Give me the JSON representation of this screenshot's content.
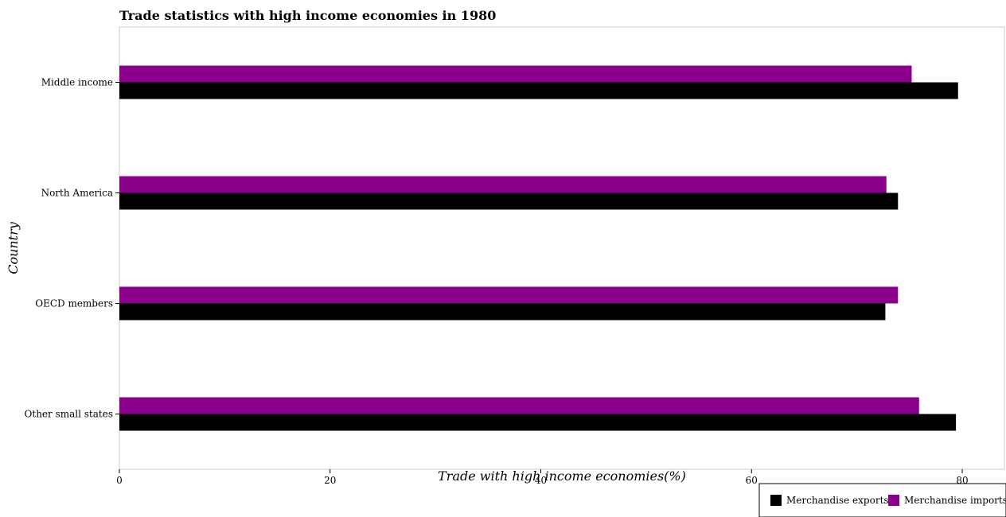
{
  "chart_data": {
    "type": "bar",
    "orientation": "horizontal",
    "title": "Trade statistics with high income economies in 1980",
    "xlabel": "Trade with high income economies(%)",
    "ylabel": "Country",
    "categories": [
      "Middle income",
      "North America",
      "OECD members",
      "Other small states"
    ],
    "xlim": [
      0,
      84
    ],
    "xticks": [
      0,
      20,
      40,
      60,
      80
    ],
    "grid": false,
    "legend_position": "bottom-right",
    "series": [
      {
        "name": "Merchandise exports",
        "color": "#000000",
        "values": [
          79.6,
          73.9,
          72.7,
          79.4
        ]
      },
      {
        "name": "Merchandise imports",
        "color": "#8b008b",
        "values": [
          75.2,
          72.8,
          73.9,
          75.9
        ]
      }
    ]
  }
}
